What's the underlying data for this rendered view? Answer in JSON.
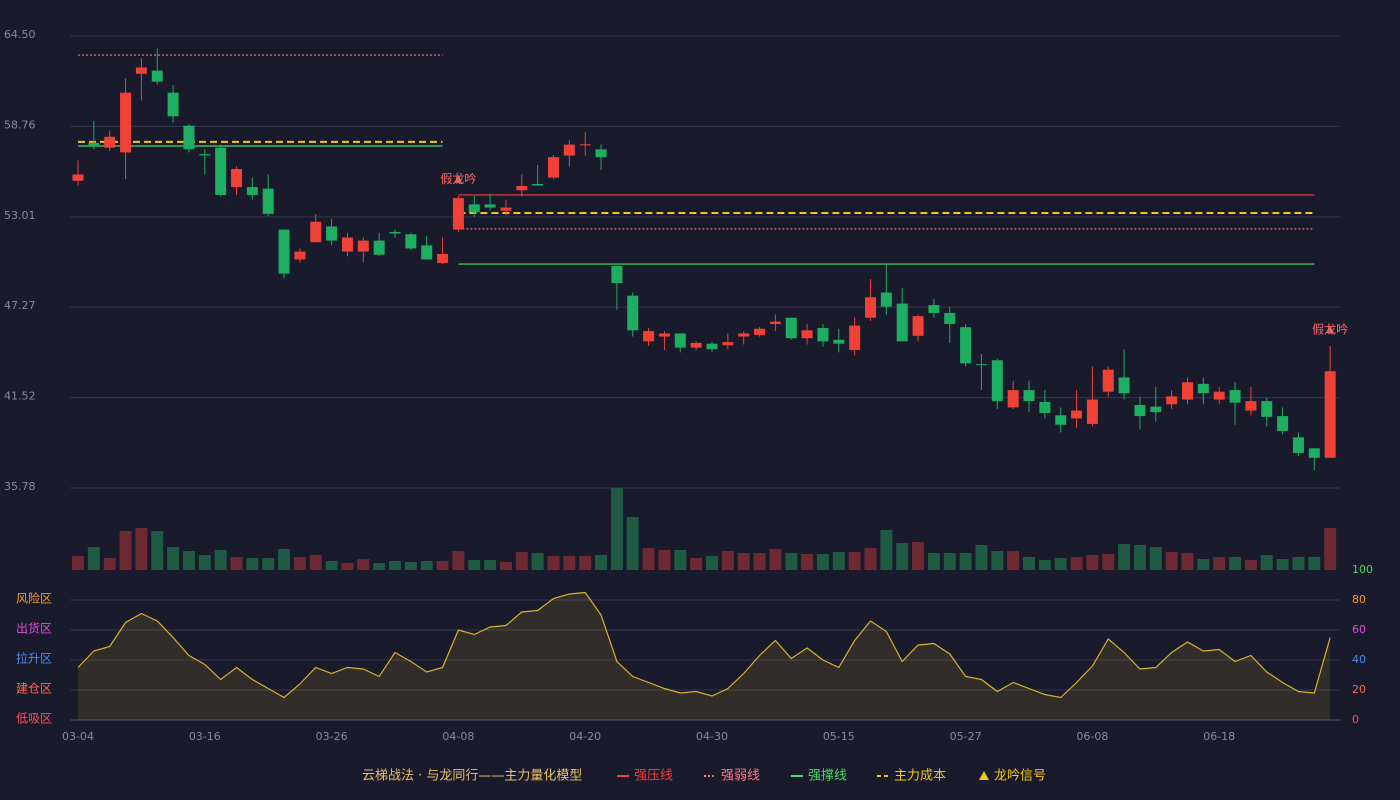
{
  "chart_data": [
    {
      "type": "candlestick",
      "categories": [
        "03-04",
        null,
        null,
        null,
        null,
        null,
        null,
        null,
        "03-16",
        null,
        null,
        null,
        null,
        null,
        null,
        null,
        "03-26",
        null,
        null,
        null,
        null,
        null,
        null,
        null,
        "04-08",
        null,
        null,
        null,
        null,
        null,
        null,
        null,
        "04-20",
        null,
        null,
        null,
        null,
        null,
        null,
        null,
        "04-30",
        null,
        null,
        null,
        null,
        null,
        null,
        null,
        "05-15",
        null,
        null,
        null,
        null,
        null,
        null,
        null,
        "05-27",
        null,
        null,
        null,
        null,
        null,
        null,
        null,
        "06-08",
        null,
        null,
        null,
        null,
        null,
        null,
        null,
        "06-18",
        null,
        null,
        null,
        null,
        null,
        null,
        null
      ],
      "open": [
        55.3,
        57.7,
        57.4,
        57.1,
        62.1,
        62.3,
        60.9,
        58.8,
        56.99,
        57.4,
        54.9,
        54.9,
        54.8,
        52.2,
        50.3,
        51.4,
        52.4,
        50.8,
        50.8,
        51.5,
        52.05,
        51.9,
        51.2,
        50.08,
        52.2,
        53.8,
        53.8,
        53.4,
        54.7,
        55.1,
        55.5,
        56.9,
        57.55,
        57.3,
        49.9,
        48.0,
        45.1,
        45.4,
        45.6,
        44.7,
        44.95,
        44.85,
        45.4,
        45.5,
        46.2,
        46.6,
        45.3,
        45.95,
        45.2,
        44.55,
        46.6,
        48.2,
        47.5,
        45.45,
        47.4,
        46.9,
        46.0,
        43.65,
        43.9,
        40.9,
        42.0,
        41.25,
        40.4,
        40.2,
        39.85,
        41.9,
        42.8,
        41.05,
        40.95,
        41.1,
        41.4,
        42.4,
        41.4,
        42.0,
        40.7,
        41.3,
        40.35,
        39.0,
        38.3,
        37.7
      ],
      "high": [
        56.6,
        59.1,
        58.5,
        61.8,
        63.1,
        63.7,
        61.4,
        58.9,
        57.3,
        57.6,
        56.2,
        55.5,
        55.7,
        52.2,
        51.0,
        53.2,
        52.9,
        52.0,
        51.7,
        52.0,
        52.2,
        52.0,
        51.8,
        51.7,
        54.35,
        54.35,
        54.5,
        54.1,
        55.7,
        56.3,
        56.94,
        57.9,
        58.4,
        57.6,
        49.9,
        48.2,
        45.95,
        45.75,
        45.6,
        45.1,
        45.05,
        45.6,
        45.75,
        46.0,
        46.8,
        46.6,
        46.2,
        46.2,
        45.9,
        46.6,
        49.05,
        50.0,
        48.5,
        46.8,
        47.8,
        47.3,
        46.2,
        44.3,
        44.0,
        42.6,
        42.6,
        42.0,
        40.9,
        42.0,
        43.5,
        43.5,
        44.6,
        41.6,
        42.2,
        42.0,
        42.8,
        42.8,
        42.2,
        42.5,
        42.2,
        41.5,
        40.9,
        39.3,
        38.3,
        44.8
      ],
      "low": [
        55.0,
        57.3,
        57.2,
        55.4,
        60.4,
        61.4,
        59.0,
        57.1,
        55.7,
        54.3,
        54.4,
        54.1,
        53.05,
        49.1,
        50.1,
        51.4,
        51.2,
        50.5,
        50.1,
        50.5,
        51.7,
        50.9,
        50.3,
        50.0,
        52.05,
        53.0,
        53.4,
        53.1,
        54.3,
        54.97,
        55.4,
        56.2,
        56.9,
        56.0,
        47.1,
        45.4,
        44.8,
        44.55,
        44.4,
        44.55,
        44.4,
        44.6,
        44.9,
        45.4,
        45.75,
        45.2,
        44.9,
        44.75,
        44.4,
        44.2,
        46.4,
        46.8,
        45.1,
        45.1,
        46.6,
        45.0,
        43.5,
        42.0,
        40.8,
        40.8,
        40.6,
        40.2,
        39.3,
        39.6,
        39.7,
        41.6,
        41.4,
        39.5,
        40.0,
        40.8,
        41.1,
        41.1,
        41.1,
        39.8,
        40.4,
        39.7,
        39.2,
        37.8,
        36.9,
        37.7
      ],
      "close": [
        55.7,
        57.5,
        58.1,
        60.9,
        62.5,
        61.6,
        59.4,
        57.3,
        56.91,
        54.4,
        56.05,
        54.4,
        53.2,
        49.4,
        50.8,
        52.7,
        51.5,
        51.7,
        51.5,
        50.6,
        51.95,
        51.0,
        50.3,
        50.65,
        54.2,
        53.3,
        53.6,
        53.6,
        54.97,
        55.0,
        56.8,
        57.6,
        57.62,
        56.8,
        48.8,
        45.8,
        45.75,
        45.6,
        44.7,
        45.0,
        44.6,
        45.05,
        45.6,
        45.9,
        46.35,
        45.3,
        45.8,
        45.1,
        44.95,
        46.1,
        47.9,
        47.3,
        45.1,
        46.7,
        46.9,
        46.2,
        43.7,
        43.6,
        41.3,
        42.0,
        41.3,
        40.55,
        39.8,
        40.7,
        41.4,
        43.3,
        41.8,
        40.35,
        40.6,
        41.6,
        42.5,
        41.8,
        41.9,
        41.2,
        41.3,
        40.3,
        39.4,
        38.0,
        37.7,
        43.2
      ],
      "up_color": "#ef4136",
      "down_color": "#1dae61",
      "ylim": [
        35.78,
        64.5
      ],
      "yticks": [
        35.78,
        41.52,
        47.27,
        53.01,
        58.76,
        {
          "value": 64.5,
          "label": "64.50"
        }
      ],
      "grid": true,
      "series": [
        {
          "name": "强压线",
          "color": "#ef4136",
          "style": "solid",
          "values": [
            null,
            null,
            null,
            null,
            null,
            null,
            null,
            null,
            null,
            null,
            null,
            null,
            null,
            null,
            null,
            null,
            null,
            null,
            null,
            null,
            null,
            null,
            null,
            null,
            54.4,
            54.4,
            54.4,
            54.4,
            54.4,
            54.4,
            54.4,
            54.4,
            54.4,
            54.4,
            54.4,
            54.4,
            54.4,
            54.4,
            54.4,
            54.4,
            54.4,
            54.4,
            54.4,
            54.4,
            54.4,
            54.4,
            54.4,
            54.4,
            54.4,
            54.4,
            54.4,
            54.4,
            54.4,
            54.4,
            54.4,
            54.4,
            54.4,
            54.4,
            54.4,
            54.4,
            54.4,
            54.4,
            54.4,
            54.4,
            54.4,
            54.4,
            54.4,
            54.4,
            54.4,
            54.4,
            54.4,
            54.4,
            54.4,
            54.4,
            54.4,
            54.4,
            54.4,
            54.4,
            54.4,
            null
          ]
        },
        {
          "name": "强弱线",
          "color": "#ff7b8a",
          "style": "dotted",
          "values": [
            63.29,
            63.29,
            63.29,
            63.29,
            63.29,
            63.29,
            63.29,
            63.29,
            63.29,
            63.29,
            63.29,
            63.29,
            63.29,
            63.29,
            63.29,
            63.29,
            63.29,
            63.29,
            63.29,
            63.29,
            63.29,
            63.29,
            63.29,
            63.29,
            52.24,
            52.24,
            52.24,
            52.24,
            52.24,
            52.24,
            52.24,
            52.24,
            52.24,
            52.24,
            52.24,
            52.24,
            52.24,
            52.24,
            52.24,
            52.24,
            52.24,
            52.24,
            52.24,
            52.24,
            52.24,
            52.24,
            52.24,
            52.24,
            52.24,
            52.24,
            52.24,
            52.24,
            52.24,
            52.24,
            52.24,
            52.24,
            52.24,
            52.24,
            52.24,
            52.24,
            52.24,
            52.24,
            52.24,
            52.24,
            52.24,
            52.24,
            52.24,
            52.24,
            52.24,
            52.24,
            52.24,
            52.24,
            52.24,
            52.24,
            52.24,
            52.24,
            52.24,
            52.24,
            52.24,
            null
          ]
        },
        {
          "name": "强撑线",
          "color": "#4cd964",
          "style": "solid",
          "values": [
            57.51,
            57.51,
            57.51,
            57.51,
            57.51,
            57.51,
            57.51,
            57.51,
            57.51,
            57.51,
            57.51,
            57.51,
            57.51,
            57.51,
            57.51,
            57.51,
            57.51,
            57.51,
            57.51,
            57.51,
            57.51,
            57.51,
            57.51,
            57.51,
            50.01,
            50.01,
            50.01,
            50.01,
            50.01,
            50.01,
            50.01,
            50.01,
            50.01,
            50.01,
            50.01,
            50.01,
            50.01,
            50.01,
            50.01,
            50.01,
            50.01,
            50.01,
            50.01,
            50.01,
            50.01,
            50.01,
            50.01,
            50.01,
            50.01,
            50.01,
            50.01,
            50.01,
            50.01,
            50.01,
            50.01,
            50.01,
            50.01,
            50.01,
            50.01,
            50.01,
            50.01,
            50.01,
            50.01,
            50.01,
            50.01,
            50.01,
            50.01,
            50.01,
            50.01,
            50.01,
            50.01,
            50.01,
            50.01,
            50.01,
            50.01,
            50.01,
            50.01,
            50.01,
            50.01,
            null
          ]
        },
        {
          "name": "主力成本",
          "color": "#f5c518",
          "style": "dashed",
          "values": [
            57.77,
            57.77,
            57.77,
            57.77,
            57.77,
            57.77,
            57.77,
            57.77,
            57.77,
            57.77,
            57.77,
            57.77,
            57.77,
            57.77,
            57.77,
            57.77,
            57.77,
            57.77,
            57.77,
            57.77,
            57.77,
            57.77,
            57.77,
            57.77,
            53.25,
            53.25,
            53.25,
            53.25,
            53.25,
            53.25,
            53.25,
            53.25,
            53.25,
            53.25,
            53.25,
            53.25,
            53.25,
            53.25,
            53.25,
            53.25,
            53.25,
            53.25,
            53.25,
            53.25,
            53.25,
            53.25,
            53.25,
            53.25,
            53.25,
            53.25,
            53.25,
            53.25,
            53.25,
            53.25,
            53.25,
            53.25,
            53.25,
            53.25,
            53.25,
            53.25,
            53.25,
            53.25,
            53.25,
            53.25,
            53.25,
            53.25,
            53.25,
            53.25,
            53.25,
            53.25,
            53.25,
            53.25,
            53.25,
            53.25,
            53.25,
            53.25,
            53.25,
            53.25,
            53.25,
            null
          ]
        }
      ],
      "signal_labels": [
        null,
        null,
        null,
        null,
        null,
        null,
        null,
        null,
        null,
        null,
        null,
        null,
        null,
        null,
        null,
        null,
        null,
        null,
        null,
        null,
        null,
        null,
        null,
        null,
        "假龙吟",
        null,
        null,
        null,
        null,
        null,
        null,
        null,
        null,
        null,
        null,
        null,
        null,
        null,
        null,
        null,
        null,
        null,
        null,
        null,
        null,
        null,
        null,
        null,
        null,
        null,
        null,
        null,
        null,
        null,
        null,
        null,
        null,
        null,
        null,
        null,
        null,
        null,
        null,
        null,
        null,
        null,
        null,
        null,
        null,
        null,
        null,
        null,
        null,
        null,
        null,
        null,
        null,
        null,
        null,
        "假龙吟"
      ],
      "signal_name": "龙吟信号",
      "signal_color": "#f5c518",
      "legend_title": "云梯战法 · 与龙同行——主力量化模型"
    },
    {
      "type": "bar",
      "values": [
        14,
        23,
        12,
        39,
        42,
        39,
        23,
        19,
        15,
        20,
        13,
        12,
        12,
        21,
        13,
        15,
        9,
        7,
        11,
        7,
        9,
        8,
        9,
        9,
        19,
        10,
        10,
        8,
        18,
        17,
        14,
        14,
        14,
        15,
        82,
        53,
        22,
        20,
        20,
        12,
        14,
        19,
        17,
        17,
        21,
        17,
        16,
        16,
        18,
        18,
        22,
        40,
        27,
        28,
        17,
        17,
        17,
        25,
        19,
        19,
        13,
        10,
        12,
        13,
        15,
        16,
        26,
        25,
        23,
        18,
        17,
        11,
        13,
        13,
        10,
        15,
        11,
        13,
        13,
        42
      ],
      "up_color": "#6e2a33",
      "down_color": "#1f5a45",
      "ylim": [
        0,
        82
      ]
    },
    {
      "type": "line",
      "values": [
        35,
        46,
        49,
        65,
        71,
        66,
        55,
        43,
        37,
        27,
        35,
        27,
        21,
        15,
        24,
        35,
        31,
        35,
        34,
        29,
        45,
        39,
        32,
        35,
        60,
        57,
        62,
        63,
        72,
        73,
        81,
        84,
        85,
        70,
        39,
        29,
        25,
        21,
        18,
        19,
        16,
        21,
        31,
        43,
        53,
        41,
        48,
        40,
        35,
        53,
        66,
        59,
        39,
        50,
        51,
        44,
        29,
        27,
        19,
        25,
        21,
        17,
        15,
        25,
        36,
        54,
        45,
        34,
        35,
        45,
        52,
        46,
        47,
        39,
        43,
        32,
        25,
        19,
        18,
        55
      ],
      "color": "#d9b32a",
      "ylim": [
        0,
        100
      ],
      "yticks": [
        0,
        20,
        40,
        60,
        80,
        100
      ],
      "grid": true,
      "zones": [
        {
          "value": 0,
          "label": "低吸区",
          "color": "#ff4d5a"
        },
        {
          "value": 20,
          "label": "建仓区",
          "color": "#ff6a4d"
        },
        {
          "value": 40,
          "label": "拉升区",
          "color": "#4d8ef0"
        },
        {
          "value": 60,
          "label": "出货区",
          "color": "#e04de0"
        },
        {
          "value": 80,
          "label": "风险区",
          "color": "#f0a030"
        }
      ]
    }
  ]
}
